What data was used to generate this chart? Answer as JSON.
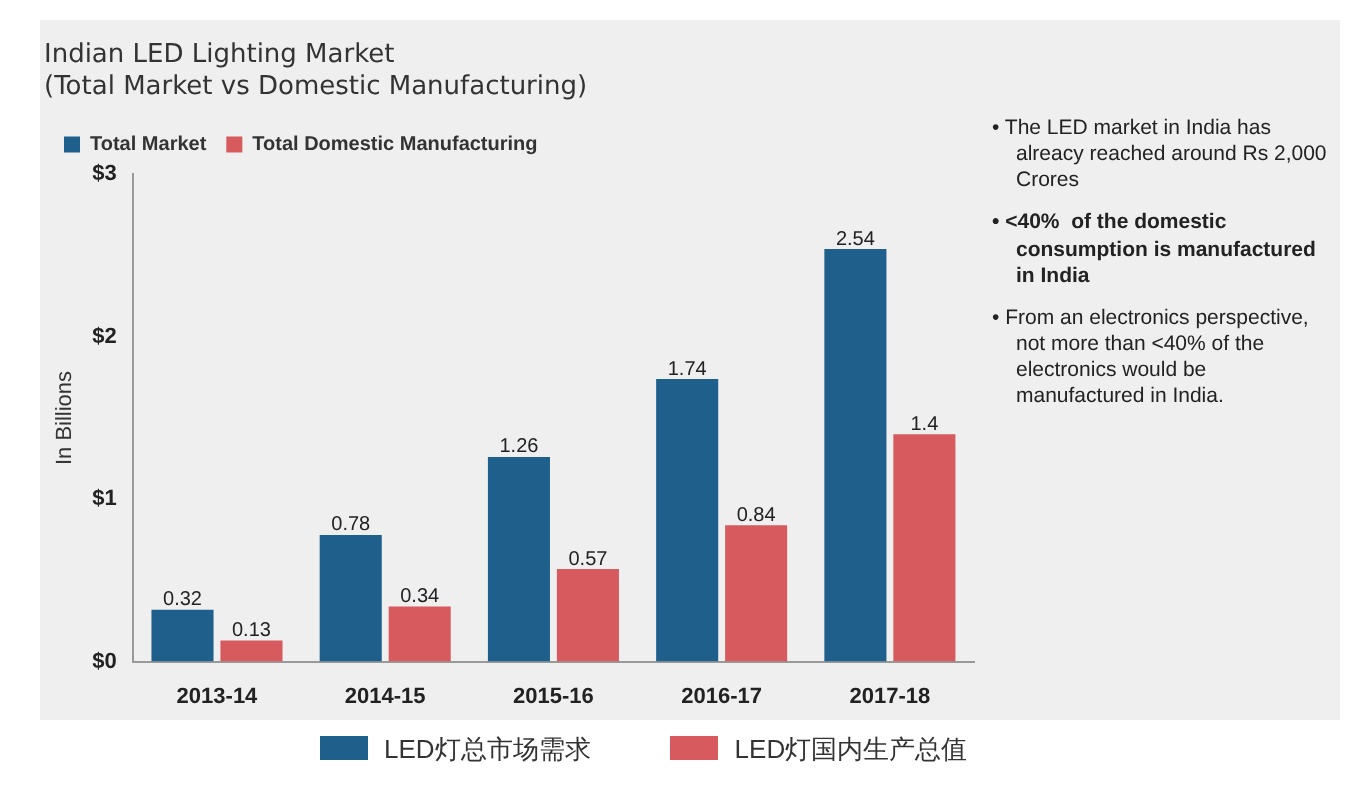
{
  "chart_data": {
    "type": "bar",
    "title": "Indian LED Lighting Market",
    "subtitle": "(Total Market vs Domestic Manufacturing)",
    "ylabel": "In Billions",
    "categories": [
      "2013-14",
      "2014-15",
      "2015-16",
      "2016-17",
      "2017-18"
    ],
    "series": [
      {
        "name": "Total Market",
        "color": "#1f5f8b",
        "values": [
          0.32,
          0.78,
          1.26,
          1.74,
          2.54
        ]
      },
      {
        "name": "Total Domestic Manufacturing",
        "color": "#d65a5e",
        "values": [
          0.13,
          0.34,
          0.57,
          0.84,
          1.4
        ]
      }
    ],
    "ylim": [
      0,
      3
    ],
    "yticks": [
      {
        "value": 0,
        "label": "$0"
      },
      {
        "value": 1,
        "label": "$1"
      },
      {
        "value": 2,
        "label": "$2"
      },
      {
        "value": 3,
        "label": "$3"
      }
    ],
    "data_labels": true,
    "legend": "top left",
    "annotations": [
      "• The LED market in India has alreacy reached around Rs 2,000 Crores",
      "• <40%  of the domestic consumption is manufactured in India",
      "• From an electronics perspective, not more than <40% of the electronics would be manufactured in India.",
      "LED灯总市场需求",
      "LED灯国内生产总值"
    ]
  }
}
